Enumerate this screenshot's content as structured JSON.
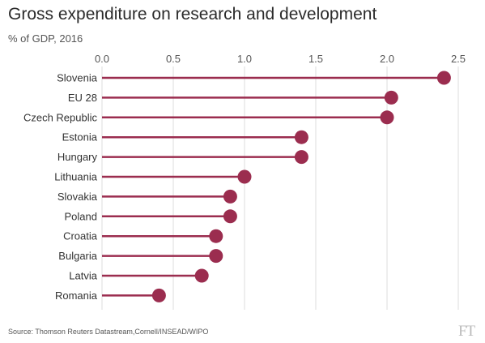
{
  "chart_data": {
    "type": "lollipop",
    "title": "Gross expenditure on research and development",
    "subtitle": "% of GDP, 2016",
    "categories": [
      "Slovenia",
      "EU 28",
      "Czech Republic",
      "Estonia",
      "Hungary",
      "Lithuania",
      "Slovakia",
      "Poland",
      "Croatia",
      "Bulgaria",
      "Latvia",
      "Romania"
    ],
    "values": [
      2.4,
      2.03,
      2.0,
      1.4,
      1.4,
      1.0,
      0.9,
      0.9,
      0.8,
      0.8,
      0.7,
      0.4
    ],
    "xlim": [
      0,
      2.5
    ],
    "xticks": [
      "0.0",
      "0.5",
      "1.0",
      "1.5",
      "2.0",
      "2.5"
    ],
    "xaxis_position": "top",
    "grid": true,
    "color": "#9b2d4f",
    "source": "Source: Thomson Reuters Datastream,Cornell/INSEAD/WIPO",
    "logo": "FT"
  }
}
